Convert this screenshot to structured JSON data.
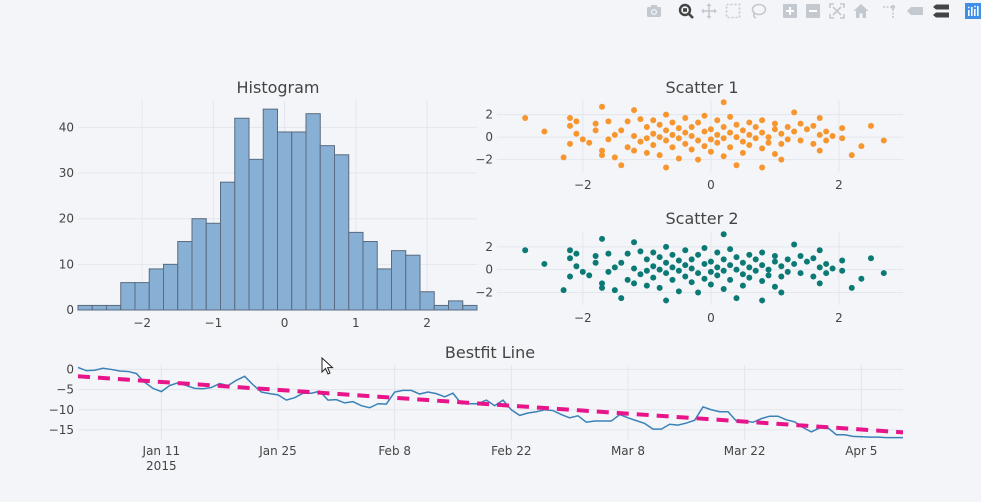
{
  "modebar": {
    "buttons": [
      {
        "name": "camera-icon",
        "label": "Download plot as a png"
      },
      {
        "name": "zoom-icon",
        "label": "Zoom",
        "active": true
      },
      {
        "name": "pan-icon",
        "label": "Pan"
      },
      {
        "name": "box-select-icon",
        "label": "Box Select"
      },
      {
        "name": "lasso-select-icon",
        "label": "Lasso Select"
      },
      {
        "name": "zoom-in-icon",
        "label": "Zoom in"
      },
      {
        "name": "zoom-out-icon",
        "label": "Zoom out"
      },
      {
        "name": "autoscale-icon",
        "label": "Autoscale"
      },
      {
        "name": "home-icon",
        "label": "Reset axes"
      },
      {
        "name": "spikelines-icon",
        "label": "Toggle Spike Lines"
      },
      {
        "name": "hover-closest-icon",
        "label": "Show closest data on hover"
      },
      {
        "name": "hover-compare-icon",
        "label": "Compare data on hover"
      },
      {
        "name": "plotly-logo-icon",
        "label": "Produced with Plotly"
      }
    ],
    "icon_color": "#c4c8cf",
    "active_color": "#444444",
    "logo_color": "#3f8fe8"
  },
  "colors": {
    "background": "#f3f5f9",
    "grid": "#e3e6ec",
    "text": "#444444",
    "histogram_fill": "#88afd4",
    "histogram_line": "#5a6b80",
    "scatter1": "#f7962f",
    "scatter2": "#0b7a75",
    "line": "#3b82b8",
    "bestfit": "#e8158a"
  },
  "chart_data": [
    {
      "type": "bar",
      "title": "Histogram",
      "xlabel": "",
      "ylabel": "",
      "bin_start": -2.9,
      "bin_size": 0.2,
      "values": [
        1,
        1,
        1,
        6,
        6,
        9,
        10,
        15,
        20,
        19,
        28,
        42,
        33,
        44,
        39,
        39,
        43,
        36,
        34,
        17,
        15,
        9,
        13,
        12,
        4,
        1,
        2,
        1
      ],
      "xlim": [
        -2.9,
        2.7
      ],
      "ylim": [
        0,
        46
      ],
      "xticks": [
        -2,
        -1,
        0,
        1,
        2
      ],
      "xtick_labels": [
        "−2",
        "−1",
        "0",
        "1",
        "2"
      ],
      "yticks": [
        0,
        10,
        20,
        30,
        40
      ],
      "ytick_labels": [
        "0",
        "10",
        "20",
        "30",
        "40"
      ],
      "grid": true
    },
    {
      "type": "scatter",
      "title": "Scatter 1",
      "xlim": [
        -3.34,
        3.0
      ],
      "ylim": [
        -3.1,
        3.3
      ],
      "xticks": [
        -2,
        0,
        2
      ],
      "xtick_labels": [
        "−2",
        "0",
        "2"
      ],
      "yticks": [
        -2,
        0,
        2
      ],
      "ytick_labels": [
        "−2",
        "0",
        "2"
      ],
      "grid": true,
      "points": [
        [
          -2.9,
          1.7
        ],
        [
          -2.6,
          0.5
        ],
        [
          -2.3,
          -1.8
        ],
        [
          -1.7,
          2.7
        ],
        [
          -2.2,
          1.7
        ],
        [
          -2.2,
          1.0
        ],
        [
          -2.1,
          1.4
        ],
        [
          -2.2,
          -0.6
        ],
        [
          -2.1,
          0.3
        ],
        [
          -2.0,
          -0.2
        ],
        [
          -1.9,
          -0.5
        ],
        [
          -1.8,
          1.2
        ],
        [
          -1.8,
          0.6
        ],
        [
          -1.7,
          -1.2
        ],
        [
          -1.7,
          -1.6
        ],
        [
          -1.6,
          1.4
        ],
        [
          -1.6,
          -0.2
        ],
        [
          -1.5,
          0.2
        ],
        [
          -1.5,
          -1.8
        ],
        [
          -1.4,
          -2.5
        ],
        [
          -1.4,
          0.6
        ],
        [
          -1.3,
          1.4
        ],
        [
          -1.3,
          -0.9
        ],
        [
          -1.2,
          2.4
        ],
        [
          -1.2,
          0.1
        ],
        [
          -1.2,
          -1.2
        ],
        [
          -1.1,
          1.6
        ],
        [
          -1.1,
          -0.4
        ],
        [
          -1.0,
          0.9
        ],
        [
          -1.0,
          -0.1
        ],
        [
          -1.0,
          -1.4
        ],
        [
          -0.9,
          1.5
        ],
        [
          -0.9,
          0.3
        ],
        [
          -0.9,
          -0.7
        ],
        [
          -0.8,
          0.0
        ],
        [
          -0.8,
          1.1
        ],
        [
          -0.8,
          -1.6
        ],
        [
          -0.7,
          -2.7
        ],
        [
          -0.7,
          2.0
        ],
        [
          -0.7,
          0.6
        ],
        [
          -0.7,
          -0.3
        ],
        [
          -0.6,
          0.2
        ],
        [
          -0.6,
          -0.9
        ],
        [
          -0.6,
          1.3
        ],
        [
          -0.5,
          -0.1
        ],
        [
          -0.5,
          0.8
        ],
        [
          -0.5,
          -1.9
        ],
        [
          -0.4,
          0.4
        ],
        [
          -0.4,
          -0.6
        ],
        [
          -0.4,
          1.7
        ],
        [
          -0.3,
          -1.1
        ],
        [
          -0.3,
          0.1
        ],
        [
          -0.3,
          0.9
        ],
        [
          -0.2,
          -0.3
        ],
        [
          -0.2,
          1.3
        ],
        [
          -0.2,
          -2.0
        ],
        [
          -0.1,
          0.5
        ],
        [
          -0.1,
          -0.8
        ],
        [
          -0.1,
          1.9
        ],
        [
          0.0,
          -0.2
        ],
        [
          0.0,
          0.7
        ],
        [
          0.0,
          -1.3
        ],
        [
          0.1,
          0.2
        ],
        [
          0.1,
          1.5
        ],
        [
          0.1,
          -0.5
        ],
        [
          0.2,
          3.1
        ],
        [
          0.2,
          -0.1
        ],
        [
          0.2,
          0.9
        ],
        [
          0.2,
          -1.7
        ],
        [
          0.3,
          0.4
        ],
        [
          0.3,
          -0.9
        ],
        [
          0.3,
          1.8
        ],
        [
          0.4,
          -2.5
        ],
        [
          0.4,
          0.0
        ],
        [
          0.4,
          1.1
        ],
        [
          0.5,
          -0.4
        ],
        [
          0.5,
          0.6
        ],
        [
          0.5,
          -1.4
        ],
        [
          0.6,
          0.2
        ],
        [
          0.6,
          1.3
        ],
        [
          0.6,
          -0.7
        ],
        [
          0.7,
          -0.1
        ],
        [
          0.7,
          0.9
        ],
        [
          0.8,
          -2.7
        ],
        [
          0.8,
          0.4
        ],
        [
          0.8,
          -1.0
        ],
        [
          0.8,
          1.5
        ],
        [
          0.9,
          0.0
        ],
        [
          0.9,
          -0.5
        ],
        [
          1.0,
          0.7
        ],
        [
          1.0,
          -1.5
        ],
        [
          1.0,
          1.2
        ],
        [
          1.1,
          -2.0
        ],
        [
          1.1,
          0.3
        ],
        [
          1.1,
          -0.6
        ],
        [
          1.2,
          0.9
        ],
        [
          1.2,
          -0.2
        ],
        [
          1.3,
          2.2
        ],
        [
          1.3,
          0.5
        ],
        [
          1.4,
          1.2
        ],
        [
          1.4,
          -0.3
        ],
        [
          1.5,
          0.7
        ],
        [
          1.6,
          1.0
        ],
        [
          1.6,
          -0.6
        ],
        [
          1.7,
          1.7
        ],
        [
          1.7,
          0.2
        ],
        [
          1.7,
          -1.2
        ],
        [
          1.8,
          0.5
        ],
        [
          1.8,
          -0.3
        ],
        [
          1.9,
          0.1
        ],
        [
          2.05,
          0.8
        ],
        [
          2.05,
          -0.1
        ],
        [
          2.2,
          -1.6
        ],
        [
          2.35,
          -0.8
        ],
        [
          2.5,
          1.0
        ],
        [
          2.7,
          -0.3
        ]
      ]
    },
    {
      "type": "scatter",
      "title": "Scatter 2",
      "xlim": [
        -3.34,
        3.0
      ],
      "ylim": [
        -3.1,
        3.3
      ],
      "xticks": [
        -2,
        0,
        2
      ],
      "xtick_labels": [
        "−2",
        "0",
        "2"
      ],
      "yticks": [
        -2,
        0,
        2
      ],
      "ytick_labels": [
        "−2",
        "0",
        "2"
      ],
      "grid": true,
      "points": [
        [
          -2.9,
          1.7
        ],
        [
          -2.6,
          0.5
        ],
        [
          -2.3,
          -1.8
        ],
        [
          -1.7,
          2.7
        ],
        [
          -2.2,
          1.7
        ],
        [
          -2.2,
          1.0
        ],
        [
          -2.1,
          1.4
        ],
        [
          -2.2,
          -0.6
        ],
        [
          -2.1,
          0.3
        ],
        [
          -2.0,
          -0.2
        ],
        [
          -1.9,
          -0.5
        ],
        [
          -1.8,
          1.2
        ],
        [
          -1.8,
          0.6
        ],
        [
          -1.7,
          -1.2
        ],
        [
          -1.7,
          -1.6
        ],
        [
          -1.6,
          1.4
        ],
        [
          -1.6,
          -0.2
        ],
        [
          -1.5,
          0.2
        ],
        [
          -1.5,
          -1.8
        ],
        [
          -1.4,
          -2.5
        ],
        [
          -1.4,
          0.6
        ],
        [
          -1.3,
          1.4
        ],
        [
          -1.3,
          -0.9
        ],
        [
          -1.2,
          2.4
        ],
        [
          -1.2,
          0.1
        ],
        [
          -1.2,
          -1.2
        ],
        [
          -1.1,
          1.6
        ],
        [
          -1.1,
          -0.4
        ],
        [
          -1.0,
          0.9
        ],
        [
          -1.0,
          -0.1
        ],
        [
          -1.0,
          -1.4
        ],
        [
          -0.9,
          1.5
        ],
        [
          -0.9,
          0.3
        ],
        [
          -0.9,
          -0.7
        ],
        [
          -0.8,
          0.0
        ],
        [
          -0.8,
          1.1
        ],
        [
          -0.8,
          -1.6
        ],
        [
          -0.7,
          -2.7
        ],
        [
          -0.7,
          2.0
        ],
        [
          -0.7,
          0.6
        ],
        [
          -0.7,
          -0.3
        ],
        [
          -0.6,
          0.2
        ],
        [
          -0.6,
          -0.9
        ],
        [
          -0.6,
          1.3
        ],
        [
          -0.5,
          -0.1
        ],
        [
          -0.5,
          0.8
        ],
        [
          -0.5,
          -1.9
        ],
        [
          -0.4,
          0.4
        ],
        [
          -0.4,
          -0.6
        ],
        [
          -0.4,
          1.7
        ],
        [
          -0.3,
          -1.1
        ],
        [
          -0.3,
          0.1
        ],
        [
          -0.3,
          0.9
        ],
        [
          -0.2,
          -0.3
        ],
        [
          -0.2,
          1.3
        ],
        [
          -0.2,
          -2.0
        ],
        [
          -0.1,
          0.5
        ],
        [
          -0.1,
          -0.8
        ],
        [
          -0.1,
          1.9
        ],
        [
          0.0,
          -0.2
        ],
        [
          0.0,
          0.7
        ],
        [
          0.0,
          -1.3
        ],
        [
          0.1,
          0.2
        ],
        [
          0.1,
          1.5
        ],
        [
          0.1,
          -0.5
        ],
        [
          0.2,
          3.1
        ],
        [
          0.2,
          -0.1
        ],
        [
          0.2,
          0.9
        ],
        [
          0.2,
          -1.7
        ],
        [
          0.3,
          0.4
        ],
        [
          0.3,
          -0.9
        ],
        [
          0.3,
          1.8
        ],
        [
          0.4,
          -2.5
        ],
        [
          0.4,
          0.0
        ],
        [
          0.4,
          1.1
        ],
        [
          0.5,
          -0.4
        ],
        [
          0.5,
          0.6
        ],
        [
          0.5,
          -1.4
        ],
        [
          0.6,
          0.2
        ],
        [
          0.6,
          1.3
        ],
        [
          0.6,
          -0.7
        ],
        [
          0.7,
          -0.1
        ],
        [
          0.7,
          0.9
        ],
        [
          0.8,
          -2.7
        ],
        [
          0.8,
          0.4
        ],
        [
          0.8,
          -1.0
        ],
        [
          0.8,
          1.5
        ],
        [
          0.9,
          0.0
        ],
        [
          0.9,
          -0.5
        ],
        [
          1.0,
          0.7
        ],
        [
          1.0,
          -1.5
        ],
        [
          1.0,
          1.2
        ],
        [
          1.1,
          -2.0
        ],
        [
          1.1,
          0.3
        ],
        [
          1.1,
          -0.6
        ],
        [
          1.2,
          0.9
        ],
        [
          1.2,
          -0.2
        ],
        [
          1.3,
          2.2
        ],
        [
          1.3,
          0.5
        ],
        [
          1.4,
          1.2
        ],
        [
          1.4,
          -0.3
        ],
        [
          1.5,
          0.7
        ],
        [
          1.6,
          1.0
        ],
        [
          1.6,
          -0.6
        ],
        [
          1.7,
          1.7
        ],
        [
          1.7,
          0.2
        ],
        [
          1.7,
          -1.2
        ],
        [
          1.8,
          0.5
        ],
        [
          1.8,
          -0.3
        ],
        [
          1.9,
          0.1
        ],
        [
          2.05,
          0.8
        ],
        [
          2.05,
          -0.1
        ],
        [
          2.2,
          -1.6
        ],
        [
          2.35,
          -0.8
        ],
        [
          2.5,
          1.0
        ],
        [
          2.7,
          -0.3
        ]
      ]
    },
    {
      "type": "line",
      "title": "Bestfit Line",
      "x_start": "2015-01-01",
      "x_step_days": 1,
      "xlim_days": [
        0,
        99
      ],
      "ylim": [
        -17.5,
        1.1
      ],
      "xticks_days": [
        10,
        24,
        38,
        52,
        66,
        80,
        94
      ],
      "xtick_labels": [
        "Jan 11",
        "Jan 25",
        "Feb 8",
        "Feb 22",
        "Mar 8",
        "Mar 22",
        "Apr 5"
      ],
      "xtick_sublabel": "2015",
      "yticks": [
        0,
        -5,
        -10,
        -15
      ],
      "ytick_labels": [
        "0",
        "−5",
        "−10",
        "−15"
      ],
      "grid": true,
      "series": [
        {
          "name": "data",
          "style": "solid",
          "values": [
            0.5,
            -0.3,
            -0.2,
            0.3,
            0.0,
            -0.4,
            -0.5,
            -1.0,
            -3.2,
            -4.7,
            -5.5,
            -4.0,
            -3.3,
            -4.0,
            -4.7,
            -4.8,
            -4.5,
            -3.5,
            -4.0,
            -2.7,
            -1.7,
            -3.8,
            -5.6,
            -6.0,
            -6.3,
            -7.6,
            -7.0,
            -5.9,
            -5.9,
            -5.4,
            -7.6,
            -7.5,
            -8.3,
            -8.0,
            -9.0,
            -9.5,
            -8.5,
            -8.6,
            -5.6,
            -5.2,
            -5.2,
            -6.1,
            -5.6,
            -6.0,
            -6.8,
            -5.9,
            -8.5,
            -8.5,
            -8.5,
            -7.6,
            -9.0,
            -7.6,
            -10.0,
            -11.4,
            -10.8,
            -10.5,
            -10.0,
            -10.2,
            -11.2,
            -12.0,
            -11.5,
            -13.1,
            -12.8,
            -12.8,
            -12.8,
            -11.2,
            -12.0,
            -12.7,
            -13.4,
            -14.8,
            -14.8,
            -13.6,
            -13.8,
            -13.3,
            -12.6,
            -9.3,
            -10.0,
            -10.5,
            -10.5,
            -12.8,
            -12.8,
            -13.1,
            -12.2,
            -11.6,
            -11.6,
            -12.5,
            -13.0,
            -14.4,
            -15.5,
            -14.5,
            -14.5,
            -16.2,
            -16.2,
            -16.6,
            -16.7,
            -16.8,
            -16.8,
            -16.9,
            -16.9,
            -16.9
          ]
        },
        {
          "name": "bestfit",
          "style": "dashed",
          "start": -1.7,
          "end": -15.6
        }
      ]
    }
  ]
}
